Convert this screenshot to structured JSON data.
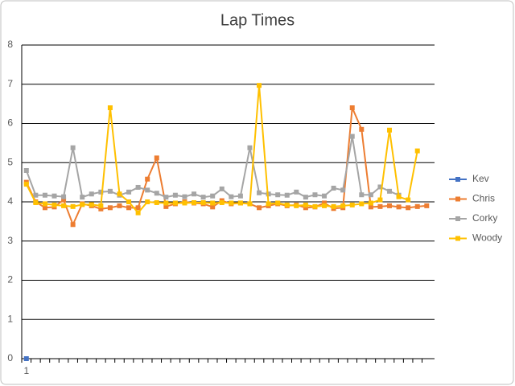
{
  "chart_data": {
    "type": "line",
    "title": "Lap Times",
    "categories": [
      "1",
      null,
      null,
      null,
      null,
      null,
      null,
      null,
      null,
      null,
      null,
      null,
      null,
      null,
      null,
      null,
      null,
      null,
      null,
      null,
      null,
      null,
      null,
      null,
      null,
      null,
      null,
      null,
      null,
      null,
      null,
      null,
      null,
      null,
      null,
      null,
      null,
      null,
      null,
      null,
      null,
      null,
      null,
      null
    ],
    "series": [
      {
        "name": "Kev",
        "color": "#4472c4",
        "values": [
          0,
          null,
          null,
          null,
          null,
          null,
          null,
          null,
          null,
          null,
          null,
          null,
          null,
          null,
          null,
          null,
          null,
          null,
          null,
          null,
          null,
          null,
          null,
          null,
          null,
          null,
          null,
          null,
          null,
          null,
          null,
          null,
          null,
          null,
          null,
          null,
          null,
          null,
          null,
          null,
          null,
          null,
          null,
          null
        ]
      },
      {
        "name": "Chris",
        "color": "#ed7d31",
        "values": [
          4.5,
          4.0,
          3.85,
          3.87,
          4.05,
          3.42,
          3.95,
          3.9,
          3.82,
          3.85,
          3.9,
          3.85,
          3.85,
          4.58,
          5.12,
          3.88,
          3.95,
          4.0,
          3.97,
          3.95,
          3.87,
          4.03,
          3.95,
          3.97,
          3.95,
          3.85,
          3.9,
          3.95,
          3.9,
          3.92,
          3.85,
          3.87,
          3.97,
          3.83,
          3.85,
          6.4,
          5.85,
          3.87,
          3.88,
          3.9,
          3.87,
          3.85,
          3.88,
          3.9
        ]
      },
      {
        "name": "Corky",
        "color": "#a5a5a5",
        "values": [
          4.8,
          4.17,
          4.17,
          4.15,
          4.13,
          5.38,
          4.12,
          4.2,
          4.25,
          4.27,
          4.17,
          4.25,
          4.37,
          4.3,
          4.22,
          4.12,
          4.17,
          4.13,
          4.2,
          4.12,
          4.15,
          4.33,
          4.13,
          4.15,
          5.38,
          4.23,
          4.2,
          4.18,
          4.17,
          4.25,
          4.12,
          4.18,
          4.15,
          4.35,
          4.3,
          5.67,
          4.18,
          4.18,
          4.38,
          4.27,
          4.17,
          null,
          null,
          null
        ]
      },
      {
        "name": "Woody",
        "color": "#ffc000",
        "values": [
          4.45,
          3.98,
          3.95,
          3.92,
          3.9,
          3.88,
          3.93,
          3.93,
          3.9,
          6.4,
          4.2,
          4.0,
          3.72,
          4.0,
          3.98,
          3.97,
          3.97,
          3.97,
          3.98,
          3.98,
          3.97,
          3.98,
          3.97,
          3.97,
          3.95,
          6.97,
          3.95,
          3.97,
          3.92,
          3.9,
          3.92,
          3.88,
          3.9,
          3.88,
          3.9,
          3.92,
          3.95,
          3.97,
          4.05,
          5.83,
          4.13,
          4.05,
          5.3,
          null
        ]
      }
    ],
    "ylim": [
      0,
      8
    ],
    "yticks": [
      0,
      1,
      2,
      3,
      4,
      5,
      6,
      7,
      8
    ],
    "grid": true,
    "legend": "right"
  }
}
